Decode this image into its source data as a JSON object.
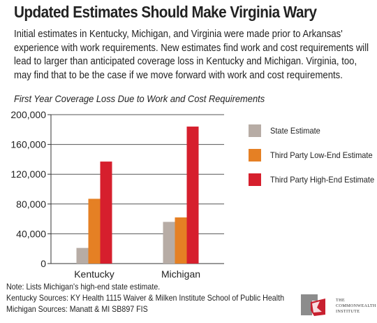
{
  "headline": "Updated Estimates Should Make Virginia Wary",
  "intro": "Initial estimates in Kentucky, Michigan, and Virginia were made prior to Arkansas' experience with work requirements. New estimates find work and cost requirements will lead to larger than anticipated coverage loss in Kentucky and Michigan. Virginia, too, may find that to be the case if we move forward with work and cost requirements.",
  "chart_data": {
    "type": "bar",
    "title": "First Year Coverage Loss Due to Work and Cost Requirements",
    "categories": [
      "Kentucky",
      "Michigan"
    ],
    "series": [
      {
        "name": "State Estimate",
        "color": "#b7aca5",
        "values": [
          21000,
          56000
        ]
      },
      {
        "name": "Third Party Low-End Estimate",
        "color": "#e58024",
        "values": [
          87000,
          62000
        ]
      },
      {
        "name": "Third Party High-End Estimate",
        "color": "#d61f2d",
        "values": [
          137000,
          184000
        ]
      }
    ],
    "ylim": [
      0,
      200000
    ],
    "yticks": [
      0,
      40000,
      80000,
      120000,
      160000,
      200000
    ],
    "ytick_labels": [
      "0",
      "40,000",
      "80,000",
      "120,000",
      "160,000",
      "200,000"
    ],
    "grid": true,
    "legend_position": "right"
  },
  "notes": [
    "Note: Lists Michigan's high-end state estimate.",
    "Kentucky Sources: KY Health 1115 Waiver & Milken Institute School of Public Health",
    "Michigan Sources: Manatt & MI SB897 FIS"
  ],
  "logo": {
    "line1": "THE",
    "line2": "COMMONWEALTH",
    "line3": "INSTITUTE",
    "colors": {
      "red": "#c8202f",
      "gray": "#8c8c8c"
    }
  }
}
